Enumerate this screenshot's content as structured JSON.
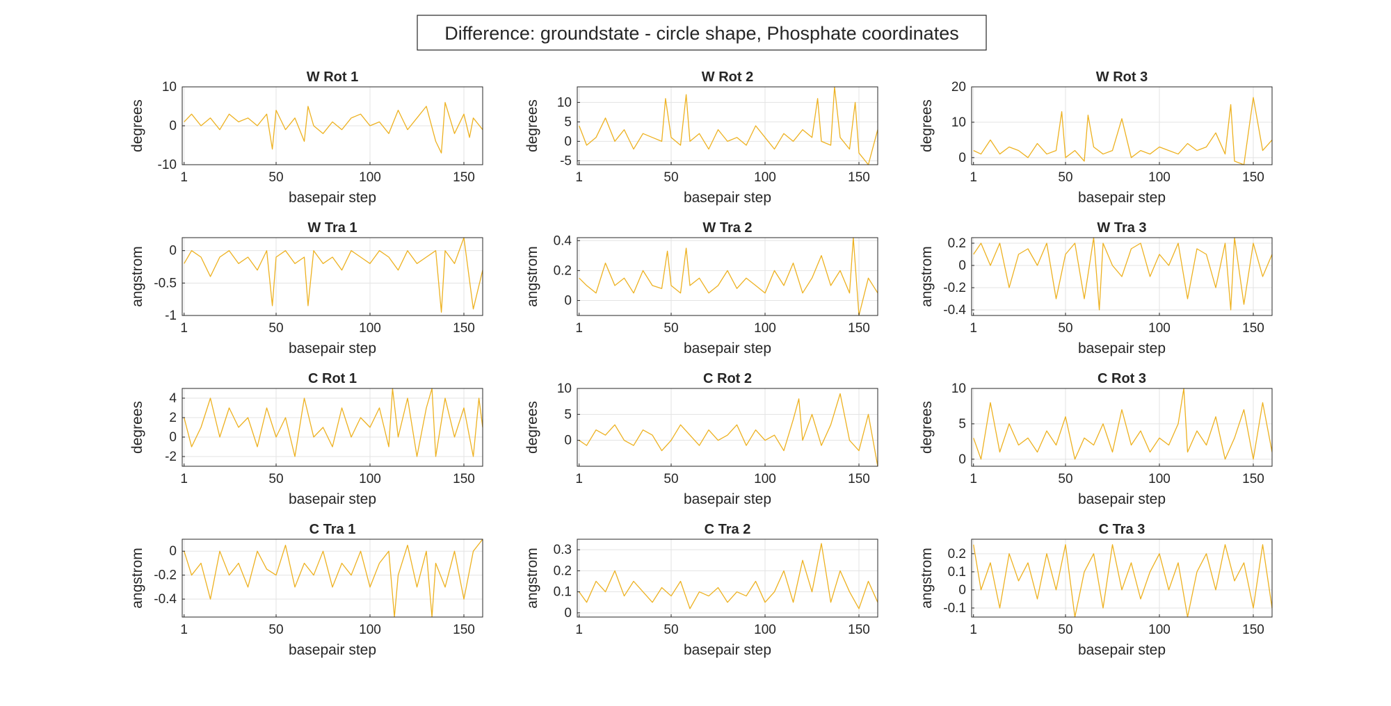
{
  "figure": {
    "title": "Difference: groundstate - circle shape, Phosphate coordinates",
    "line_color": "#EDB120"
  },
  "chart_data": [
    {
      "type": "line",
      "title": "W Rot 1",
      "xlabel": "basepair step",
      "ylabel": "degrees",
      "xlim": [
        0,
        160
      ],
      "ylim": [
        -10,
        10
      ],
      "xticks": [
        1,
        50,
        100,
        150
      ],
      "yticks": [
        -10,
        0,
        10
      ],
      "grid": true,
      "x": [
        1,
        5,
        10,
        15,
        20,
        25,
        30,
        35,
        40,
        45,
        48,
        50,
        55,
        60,
        65,
        67,
        70,
        75,
        80,
        85,
        90,
        95,
        100,
        105,
        110,
        115,
        120,
        125,
        130,
        135,
        138,
        140,
        145,
        150,
        153,
        155,
        160
      ],
      "y": [
        1,
        3,
        0,
        2,
        -1,
        3,
        1,
        2,
        0,
        3,
        -6,
        4,
        -1,
        2,
        -4,
        5,
        0,
        -2,
        1,
        -1,
        2,
        3,
        0,
        1,
        -2,
        4,
        -1,
        2,
        5,
        -4,
        -7,
        6,
        -2,
        3,
        -3,
        2,
        -1
      ]
    },
    {
      "type": "line",
      "title": "W Rot 2",
      "xlabel": "basepair step",
      "ylabel": "degrees",
      "xlim": [
        0,
        160
      ],
      "ylim": [
        -6,
        14
      ],
      "xticks": [
        1,
        50,
        100,
        150
      ],
      "yticks": [
        -5,
        0,
        5,
        10
      ],
      "grid": true,
      "x": [
        1,
        5,
        10,
        15,
        20,
        25,
        30,
        35,
        40,
        45,
        47,
        50,
        55,
        58,
        60,
        65,
        70,
        75,
        80,
        85,
        90,
        95,
        100,
        105,
        110,
        115,
        120,
        125,
        128,
        130,
        135,
        137,
        140,
        145,
        148,
        150,
        155,
        160
      ],
      "y": [
        4,
        -1,
        1,
        6,
        0,
        3,
        -2,
        2,
        1,
        0,
        11,
        1,
        -1,
        12,
        0,
        2,
        -2,
        3,
        0,
        1,
        -1,
        4,
        1,
        -2,
        2,
        0,
        3,
        1,
        11,
        0,
        -1,
        14,
        1,
        -2,
        10,
        -3,
        -6,
        3
      ]
    },
    {
      "type": "line",
      "title": "W Rot 3",
      "xlabel": "basepair step",
      "ylabel": "degrees",
      "xlim": [
        0,
        160
      ],
      "ylim": [
        -2,
        20
      ],
      "xticks": [
        1,
        50,
        100,
        150
      ],
      "yticks": [
        0,
        10,
        20
      ],
      "grid": true,
      "x": [
        1,
        5,
        10,
        15,
        20,
        25,
        30,
        35,
        40,
        45,
        48,
        50,
        55,
        60,
        62,
        65,
        70,
        75,
        80,
        85,
        90,
        95,
        100,
        105,
        110,
        115,
        120,
        125,
        130,
        135,
        138,
        140,
        145,
        150,
        155,
        160
      ],
      "y": [
        2,
        1,
        5,
        1,
        3,
        2,
        0,
        4,
        1,
        2,
        13,
        0,
        2,
        -1,
        12,
        3,
        1,
        2,
        11,
        0,
        2,
        1,
        3,
        2,
        1,
        4,
        2,
        3,
        7,
        1,
        15,
        -1,
        -2,
        17,
        2,
        5
      ]
    },
    {
      "type": "line",
      "title": "W Tra 1",
      "xlabel": "basepair step",
      "ylabel": "angstrom",
      "xlim": [
        0,
        160
      ],
      "ylim": [
        -1,
        0.2
      ],
      "xticks": [
        1,
        50,
        100,
        150
      ],
      "yticks": [
        -1,
        -0.5,
        0
      ],
      "grid": true,
      "x": [
        1,
        5,
        10,
        15,
        20,
        25,
        30,
        35,
        40,
        45,
        48,
        50,
        55,
        60,
        65,
        67,
        70,
        75,
        80,
        85,
        90,
        95,
        100,
        105,
        110,
        115,
        120,
        125,
        130,
        135,
        138,
        140,
        145,
        150,
        155,
        160
      ],
      "y": [
        -0.2,
        0,
        -0.1,
        -0.4,
        -0.1,
        0,
        -0.2,
        -0.1,
        -0.3,
        0,
        -0.85,
        -0.1,
        0,
        -0.2,
        -0.1,
        -0.85,
        0,
        -0.2,
        -0.1,
        -0.3,
        0,
        -0.1,
        -0.2,
        0,
        -0.1,
        -0.3,
        0,
        -0.2,
        -0.1,
        0,
        -0.95,
        0,
        -0.2,
        0.2,
        -0.9,
        -0.3
      ]
    },
    {
      "type": "line",
      "title": "W Tra 2",
      "xlabel": "basepair step",
      "ylabel": "angstrom",
      "xlim": [
        0,
        160
      ],
      "ylim": [
        -0.1,
        0.42
      ],
      "xticks": [
        1,
        50,
        100,
        150
      ],
      "yticks": [
        0,
        0.2,
        0.4
      ],
      "grid": true,
      "x": [
        1,
        5,
        10,
        15,
        20,
        25,
        30,
        35,
        40,
        45,
        48,
        50,
        55,
        58,
        60,
        65,
        70,
        75,
        80,
        85,
        90,
        95,
        100,
        105,
        110,
        115,
        120,
        125,
        130,
        135,
        140,
        145,
        147,
        150,
        155,
        160
      ],
      "y": [
        0.15,
        0.1,
        0.05,
        0.25,
        0.1,
        0.15,
        0.05,
        0.2,
        0.1,
        0.08,
        0.33,
        0.1,
        0.05,
        0.35,
        0.1,
        0.15,
        0.05,
        0.1,
        0.2,
        0.08,
        0.15,
        0.1,
        0.05,
        0.2,
        0.1,
        0.25,
        0.05,
        0.15,
        0.3,
        0.1,
        0.2,
        0.05,
        0.42,
        -0.1,
        0.15,
        0.05
      ]
    },
    {
      "type": "line",
      "title": "W Tra 3",
      "xlabel": "basepair step",
      "ylabel": "angstrom",
      "xlim": [
        0,
        160
      ],
      "ylim": [
        -0.45,
        0.25
      ],
      "xticks": [
        1,
        50,
        100,
        150
      ],
      "yticks": [
        -0.4,
        -0.2,
        0,
        0.2
      ],
      "grid": true,
      "x": [
        1,
        5,
        10,
        15,
        20,
        25,
        30,
        35,
        40,
        45,
        50,
        55,
        60,
        65,
        68,
        70,
        75,
        80,
        85,
        90,
        95,
        100,
        105,
        110,
        115,
        120,
        125,
        130,
        135,
        138,
        140,
        145,
        150,
        155,
        160
      ],
      "y": [
        0.1,
        0.2,
        0,
        0.2,
        -0.2,
        0.1,
        0.15,
        0,
        0.2,
        -0.3,
        0.1,
        0.2,
        -0.3,
        0.25,
        -0.4,
        0.2,
        0,
        -0.1,
        0.15,
        0.2,
        -0.1,
        0.1,
        0,
        0.2,
        -0.3,
        0.15,
        0.1,
        -0.2,
        0.2,
        -0.4,
        0.25,
        -0.35,
        0.2,
        -0.1,
        0.1
      ]
    },
    {
      "type": "line",
      "title": "C Rot 1",
      "xlabel": "basepair step",
      "ylabel": "degrees",
      "xlim": [
        0,
        160
      ],
      "ylim": [
        -3,
        5
      ],
      "xticks": [
        1,
        50,
        100,
        150
      ],
      "yticks": [
        -2,
        0,
        2,
        4
      ],
      "grid": true,
      "x": [
        1,
        5,
        10,
        15,
        20,
        25,
        30,
        35,
        40,
        45,
        50,
        55,
        60,
        65,
        70,
        75,
        80,
        85,
        90,
        95,
        100,
        105,
        110,
        112,
        115,
        120,
        125,
        130,
        133,
        135,
        140,
        145,
        150,
        155,
        158,
        160
      ],
      "y": [
        2,
        -1,
        1,
        4,
        0,
        3,
        1,
        2,
        -1,
        3,
        0,
        2,
        -2,
        4,
        0,
        1,
        -1,
        3,
        0,
        2,
        1,
        3,
        -1,
        5,
        0,
        4,
        -2,
        3,
        5,
        -2,
        4,
        0,
        3,
        -2,
        4,
        1
      ]
    },
    {
      "type": "line",
      "title": "C Rot 2",
      "xlabel": "basepair step",
      "ylabel": "degrees",
      "xlim": [
        0,
        160
      ],
      "ylim": [
        -5,
        10
      ],
      "xticks": [
        1,
        50,
        100,
        150
      ],
      "yticks": [
        0,
        5,
        10
      ],
      "grid": true,
      "x": [
        1,
        5,
        10,
        15,
        20,
        25,
        30,
        35,
        40,
        45,
        50,
        55,
        60,
        65,
        70,
        75,
        80,
        85,
        90,
        95,
        100,
        105,
        110,
        115,
        118,
        120,
        125,
        130,
        135,
        140,
        145,
        150,
        155,
        160
      ],
      "y": [
        0,
        -1,
        2,
        1,
        3,
        0,
        -1,
        2,
        1,
        -2,
        0,
        3,
        1,
        -1,
        2,
        0,
        1,
        3,
        -1,
        2,
        0,
        1,
        -2,
        4,
        8,
        0,
        5,
        -1,
        3,
        9,
        0,
        -2,
        5,
        -5
      ]
    },
    {
      "type": "line",
      "title": "C Rot 3",
      "xlabel": "basepair step",
      "ylabel": "degrees",
      "xlim": [
        0,
        160
      ],
      "ylim": [
        -1,
        10
      ],
      "xticks": [
        1,
        50,
        100,
        150
      ],
      "yticks": [
        0,
        5,
        10
      ],
      "grid": true,
      "x": [
        1,
        5,
        10,
        15,
        20,
        25,
        30,
        35,
        40,
        45,
        50,
        55,
        60,
        65,
        70,
        75,
        80,
        85,
        90,
        95,
        100,
        105,
        110,
        113,
        115,
        120,
        125,
        130,
        135,
        140,
        145,
        150,
        155,
        160
      ],
      "y": [
        3,
        0,
        8,
        1,
        5,
        2,
        3,
        1,
        4,
        2,
        6,
        0,
        3,
        2,
        5,
        1,
        7,
        2,
        4,
        1,
        3,
        2,
        5,
        10,
        1,
        4,
        2,
        6,
        0,
        3,
        7,
        0,
        8,
        1
      ]
    },
    {
      "type": "line",
      "title": "C Tra 1",
      "xlabel": "basepair step",
      "ylabel": "angstrom",
      "xlim": [
        0,
        160
      ],
      "ylim": [
        -0.55,
        0.1
      ],
      "xticks": [
        1,
        50,
        100,
        150
      ],
      "yticks": [
        -0.4,
        -0.2,
        0
      ],
      "grid": true,
      "x": [
        1,
        5,
        10,
        15,
        20,
        25,
        30,
        35,
        40,
        45,
        50,
        55,
        60,
        65,
        70,
        75,
        80,
        85,
        90,
        95,
        100,
        105,
        110,
        113,
        115,
        120,
        125,
        130,
        133,
        135,
        140,
        145,
        150,
        155,
        160
      ],
      "y": [
        0,
        -0.2,
        -0.1,
        -0.4,
        0,
        -0.2,
        -0.1,
        -0.3,
        0,
        -0.15,
        -0.2,
        0.05,
        -0.3,
        -0.1,
        -0.2,
        0,
        -0.3,
        -0.1,
        -0.2,
        0,
        -0.3,
        -0.1,
        0,
        -0.55,
        -0.2,
        0.05,
        -0.3,
        0,
        -0.55,
        -0.1,
        -0.3,
        0,
        -0.4,
        0,
        0.1
      ]
    },
    {
      "type": "line",
      "title": "C Tra 2",
      "xlabel": "basepair step",
      "ylabel": "angstrom",
      "xlim": [
        0,
        160
      ],
      "ylim": [
        -0.02,
        0.35
      ],
      "xticks": [
        1,
        50,
        100,
        150
      ],
      "yticks": [
        0,
        0.1,
        0.2,
        0.3
      ],
      "grid": true,
      "x": [
        1,
        5,
        10,
        15,
        20,
        25,
        30,
        35,
        40,
        45,
        50,
        55,
        60,
        65,
        70,
        75,
        80,
        85,
        90,
        95,
        100,
        105,
        110,
        115,
        120,
        125,
        130,
        135,
        140,
        145,
        150,
        155,
        160
      ],
      "y": [
        0.1,
        0.05,
        0.15,
        0.1,
        0.2,
        0.08,
        0.15,
        0.1,
        0.05,
        0.12,
        0.08,
        0.15,
        0.02,
        0.1,
        0.08,
        0.12,
        0.05,
        0.1,
        0.08,
        0.15,
        0.05,
        0.1,
        0.2,
        0.05,
        0.25,
        0.1,
        0.33,
        0.05,
        0.2,
        0.1,
        0.02,
        0.15,
        0.05
      ]
    },
    {
      "type": "line",
      "title": "C Tra 3",
      "xlabel": "basepair step",
      "ylabel": "angstrom",
      "xlim": [
        0,
        160
      ],
      "ylim": [
        -0.15,
        0.28
      ],
      "xticks": [
        1,
        50,
        100,
        150
      ],
      "yticks": [
        -0.1,
        0,
        0.1,
        0.2
      ],
      "grid": true,
      "x": [
        1,
        5,
        10,
        15,
        20,
        25,
        30,
        35,
        40,
        45,
        50,
        55,
        60,
        65,
        70,
        75,
        80,
        85,
        90,
        95,
        100,
        105,
        110,
        115,
        120,
        125,
        130,
        135,
        140,
        145,
        150,
        155,
        160
      ],
      "y": [
        0.25,
        0,
        0.15,
        -0.1,
        0.2,
        0.05,
        0.15,
        -0.05,
        0.2,
        0,
        0.25,
        -0.15,
        0.1,
        0.2,
        -0.1,
        0.25,
        0,
        0.15,
        -0.05,
        0.1,
        0.2,
        0,
        0.15,
        -0.15,
        0.1,
        0.2,
        0,
        0.25,
        0.05,
        0.15,
        -0.1,
        0.25,
        -0.1
      ]
    }
  ]
}
